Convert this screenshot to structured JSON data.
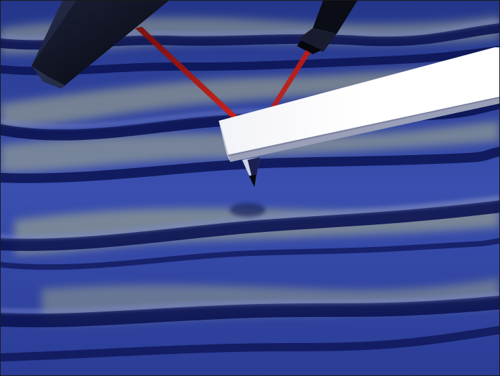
{
  "scene": {
    "subject": "afm-cantilever-scanning-surface",
    "colors": {
      "surface_base": "#2f44a0",
      "surface_deep": "#0d1657",
      "surface_highlight": "#c9cf8a",
      "laser": "#d81a10",
      "cantilever": "#ffffff",
      "housing": "#0c0f1c"
    },
    "icons": [
      "laser-emitter-icon",
      "photodetector-icon",
      "cantilever-icon",
      "probe-tip-icon"
    ]
  }
}
